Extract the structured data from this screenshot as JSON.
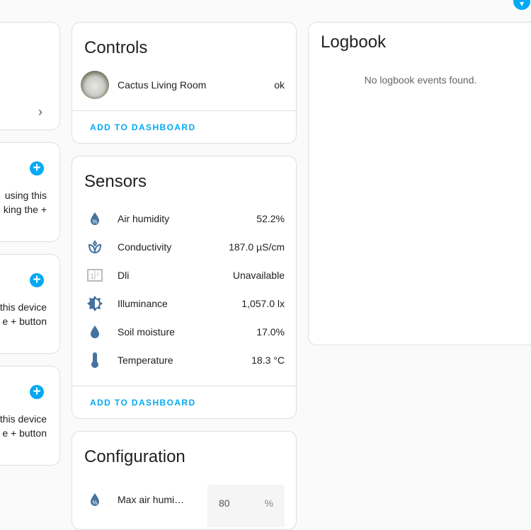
{
  "left_cards": [
    {
      "text": []
    },
    {
      "text": [
        "using this",
        "king the +"
      ]
    },
    {
      "text": [
        "this device",
        "e + button"
      ]
    },
    {
      "text": [
        "this device",
        "e + button"
      ]
    }
  ],
  "controls": {
    "title": "Controls",
    "entity": "Cactus Living Room",
    "state": "ok",
    "add_label": "ADD TO DASHBOARD"
  },
  "sensors": {
    "title": "Sensors",
    "items": [
      {
        "icon": "water-percent-icon",
        "name": "Air humidity",
        "value": "52.2%"
      },
      {
        "icon": "sprout-icon",
        "name": "Conductivity",
        "value": "187.0 µS/cm"
      },
      {
        "icon": "counter-icon",
        "name": "Dli",
        "value": "Unavailable"
      },
      {
        "icon": "brightness-icon",
        "name": "Illuminance",
        "value": "1,057.0 lx"
      },
      {
        "icon": "water-icon",
        "name": "Soil moisture",
        "value": "17.0%"
      },
      {
        "icon": "thermometer-icon",
        "name": "Temperature",
        "value": "18.3 °C"
      }
    ],
    "add_label": "ADD TO DASHBOARD"
  },
  "configuration": {
    "title": "Configuration",
    "items": [
      {
        "icon": "water-percent-icon",
        "name": "Max air humi…",
        "value": "80",
        "unit": "%"
      }
    ]
  },
  "logbook": {
    "title": "Logbook",
    "empty": "No logbook events found."
  },
  "colors": {
    "accent": "#03a9f4",
    "icon": "#44739e"
  }
}
